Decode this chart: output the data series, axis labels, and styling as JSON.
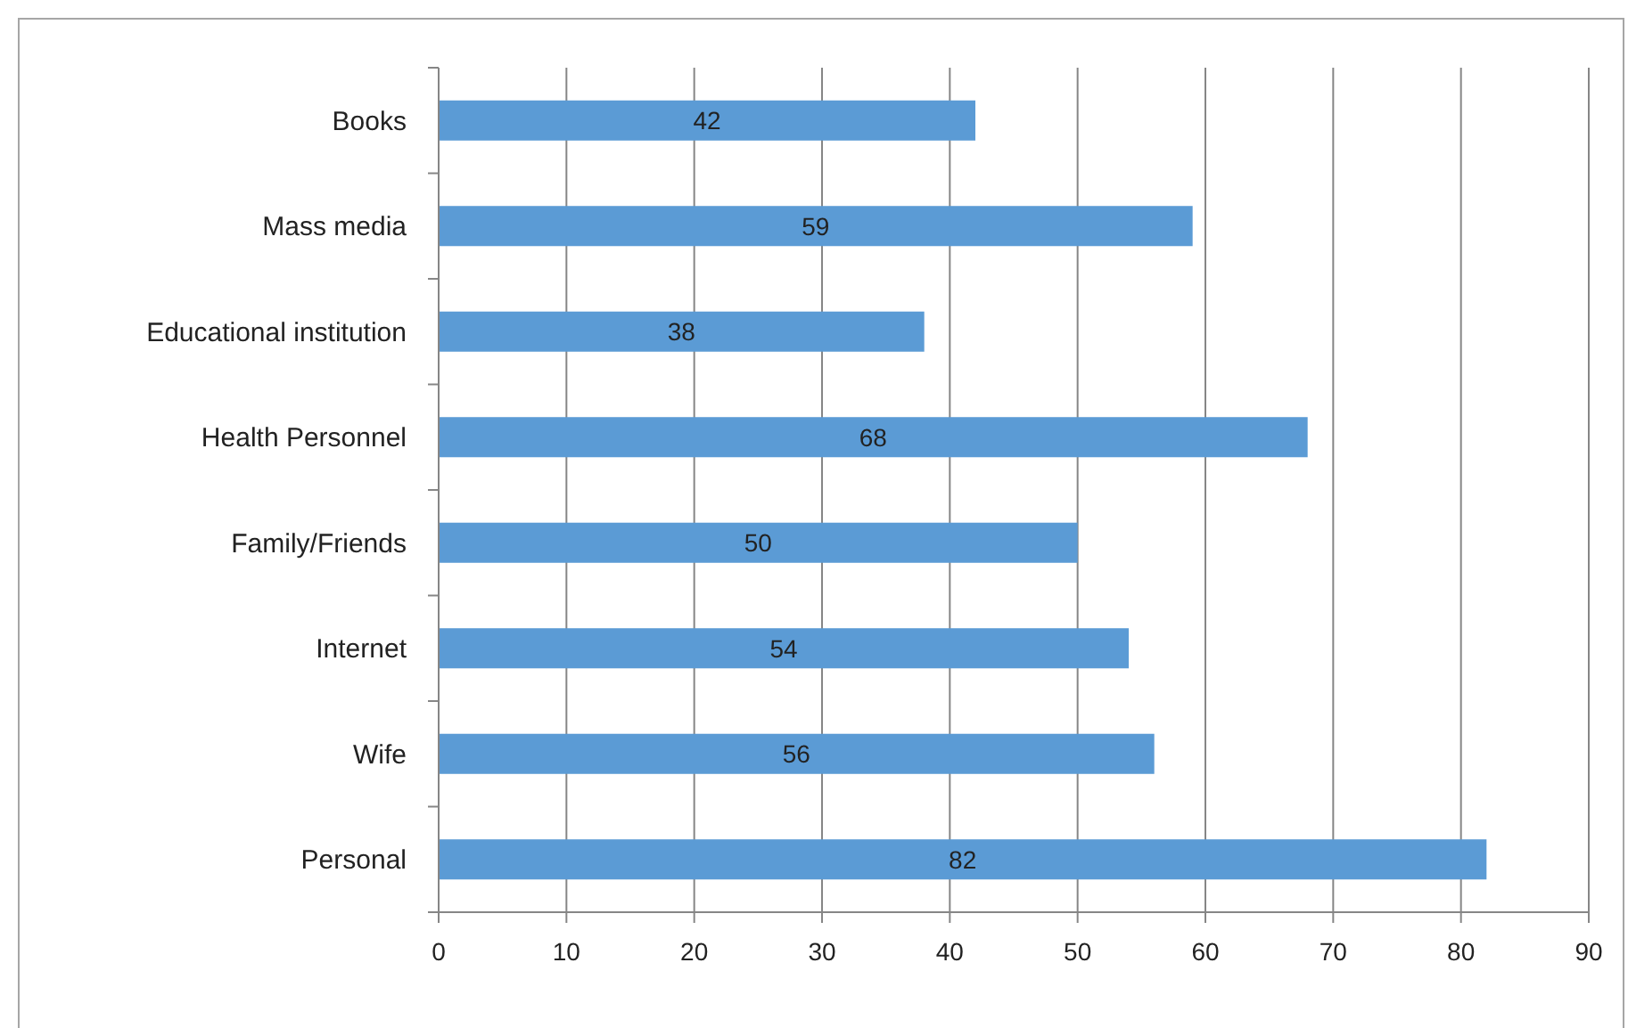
{
  "chart_data": {
    "type": "bar",
    "orientation": "horizontal",
    "categories": [
      "Books",
      "Mass media",
      "Educational institution",
      "Health Personnel",
      "Family/Friends",
      "Internet",
      "Wife",
      "Personal"
    ],
    "values": [
      42,
      59,
      38,
      68,
      50,
      54,
      56,
      82
    ],
    "color": "#5b9bd5",
    "xlim": [
      0,
      90
    ],
    "xticks": [
      0,
      10,
      20,
      30,
      40,
      50,
      60,
      70,
      80,
      90
    ],
    "grid": "x",
    "data_labels": true
  }
}
